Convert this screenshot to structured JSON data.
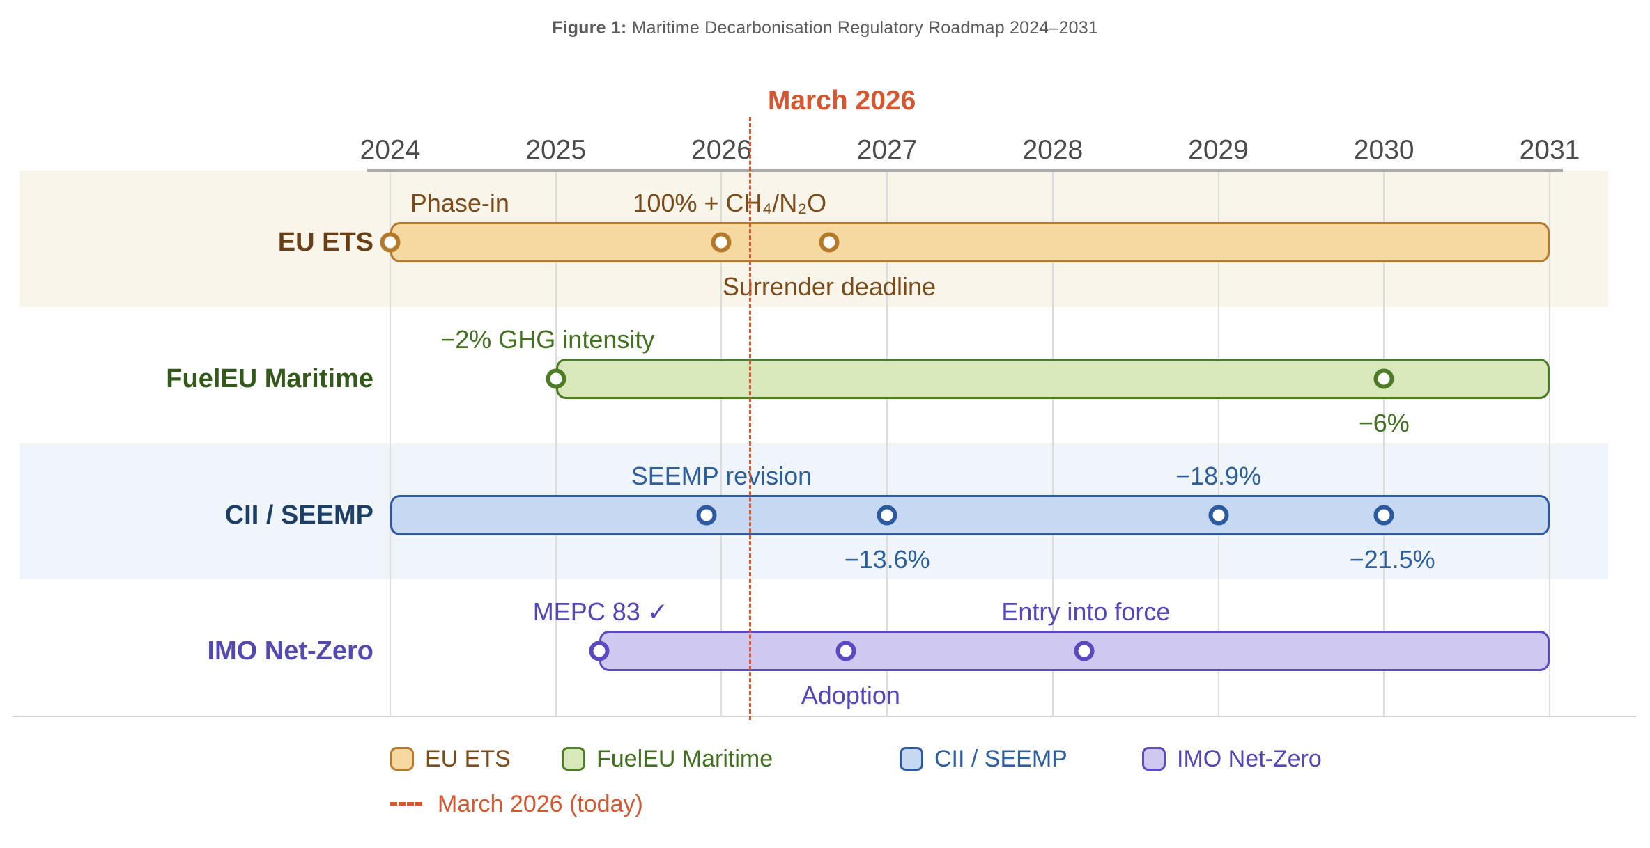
{
  "figure": {
    "title_prefix": "Figure 1:",
    "title_rest": " Maritime Decarbonisation Regulatory Roadmap 2024–2031"
  },
  "chart_data": {
    "type": "gantt-timeline",
    "title": "Figure 1: Maritime Decarbonisation Regulatory Roadmap 2024–2031",
    "x_axis": {
      "ticks": [
        "2024",
        "2025",
        "2026",
        "2027",
        "2028",
        "2029",
        "2030",
        "2031"
      ],
      "range": [
        2024,
        2031
      ],
      "grid": true
    },
    "today": {
      "x": 2026.17,
      "label": "March 2026",
      "color": "#d4572f"
    },
    "rows": [
      {
        "label": "EU ETS",
        "bar": {
          "start": 2024.0,
          "end": 2031.0
        },
        "markers": [
          2024.0,
          2026.0,
          2026.65
        ],
        "annotations": [
          {
            "text": "Phase-in",
            "x": 2024.42,
            "pos": "above"
          },
          {
            "text": "100% + CH₄/N₂O",
            "x": 2026.05,
            "pos": "above"
          },
          {
            "text": "Surrender deadline",
            "x": 2026.65,
            "pos": "below"
          }
        ],
        "colors": {
          "band": "#faf5eb",
          "fill": "#f5d9a1",
          "stroke": "#b5792c",
          "text": "#7b4b1a",
          "row_label": "#6b3f16"
        }
      },
      {
        "label": "FuelEU Maritime",
        "bar": {
          "start": 2025.0,
          "end": 2031.0
        },
        "markers": [
          2025.0,
          2030.0
        ],
        "annotations": [
          {
            "text": "−2% GHG intensity",
            "x": 2024.95,
            "pos": "above"
          },
          {
            "text": "−6%",
            "x": 2030.0,
            "pos": "below"
          }
        ],
        "colors": {
          "band": "#ffffff",
          "fill": "#d9e8ba",
          "stroke": "#4d7c26",
          "text": "#41701f",
          "row_label": "#33591a"
        }
      },
      {
        "label": "CII / SEEMP",
        "bar": {
          "start": 2024.0,
          "end": 2031.0
        },
        "markers": [
          2025.91,
          2027.0,
          2029.0,
          2030.0
        ],
        "annotations": [
          {
            "text": "SEEMP revision",
            "x": 2026.0,
            "pos": "above"
          },
          {
            "text": "−13.6%",
            "x": 2027.0,
            "pos": "below"
          },
          {
            "text": "−18.9%",
            "x": 2029.0,
            "pos": "above"
          },
          {
            "text": "−21.5%",
            "x": 2030.05,
            "pos": "below"
          }
        ],
        "colors": {
          "band": "#eff5fa",
          "fill": "#c6d8f2",
          "stroke": "#2d5a9e",
          "text": "#2c5f9e",
          "row_label": "#1d3f66"
        }
      },
      {
        "label": "IMO Net-Zero",
        "bar": {
          "start": 2025.26,
          "end": 2031.0
        },
        "markers": [
          2025.26,
          2026.75,
          2028.19
        ],
        "annotations": [
          {
            "text": "MEPC 83 ✓",
            "x": 2025.27,
            "pos": "above"
          },
          {
            "text": "Adoption",
            "x": 2026.78,
            "pos": "below"
          },
          {
            "text": "Entry into force",
            "x": 2028.2,
            "pos": "above"
          }
        ],
        "colors": {
          "band": "#ffffff",
          "fill": "#cfc9f1",
          "stroke": "#5a49c0",
          "text": "#5246b8",
          "row_label": "#5349ae"
        }
      }
    ],
    "legend": {
      "items": [
        {
          "label": "EU ETS"
        },
        {
          "label": "FuelEU Maritime"
        },
        {
          "label": "CII / SEEMP"
        },
        {
          "label": "IMO Net-Zero"
        }
      ],
      "today_label": "March 2026 (today)"
    }
  }
}
